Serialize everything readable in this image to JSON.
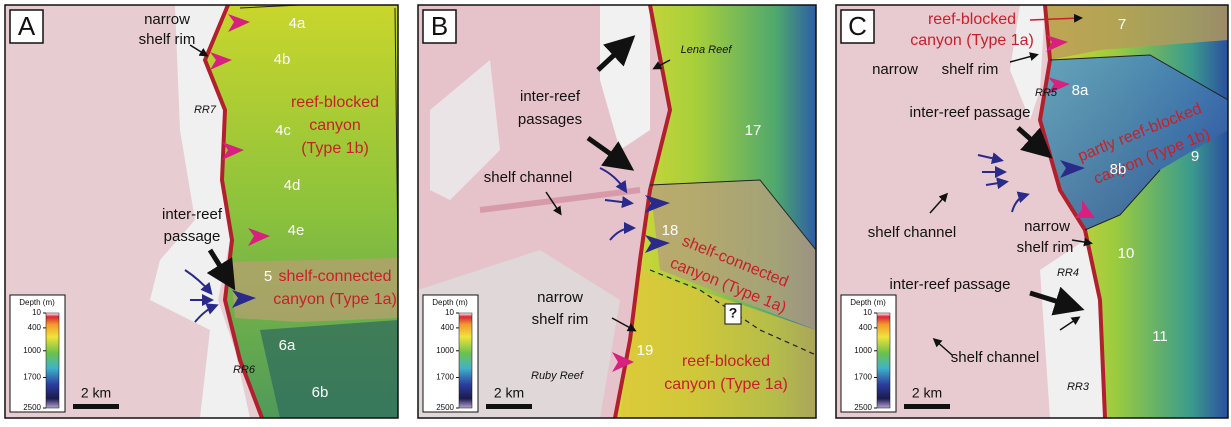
{
  "panels": [
    {
      "letter": "A",
      "labels": [
        "narrow",
        "shelf rim",
        "4a",
        "4b",
        "RR7",
        "4c",
        "reef-blocked",
        "canyon",
        "(Type 1b)",
        "4d",
        "4e",
        "inter-reef",
        "passage",
        "5",
        "shelf-connected",
        "canyon (Type 1a)",
        "6a",
        "RR6",
        "6b"
      ],
      "scale_bar": "2 km",
      "legend": {
        "title": "Depth (m)",
        "ticks": [
          10,
          400,
          1000,
          1700,
          2500
        ]
      }
    },
    {
      "letter": "B",
      "labels": [
        "Lena Reef",
        "inter-reef",
        "passages",
        "17",
        "shelf channel",
        "18",
        "shelf-connected",
        "canyon (Type 1a)",
        "?",
        "narrow",
        "shelf rim",
        "19",
        "Ruby Reef",
        "reef-blocked",
        "canyon (Type 1a)"
      ],
      "scale_bar": "2 km",
      "legend": {
        "title": "Depth (m)",
        "ticks": [
          10,
          400,
          1000,
          1700,
          2500
        ]
      }
    },
    {
      "letter": "C",
      "labels": [
        "reef-blocked",
        "canyon (Type 1a)",
        "7",
        "narrow",
        "shelf rim",
        "RR5",
        "8a",
        "partly reef-blocked",
        "canyon (Type 1b)",
        "inter-reef passage",
        "9",
        "8b",
        "shelf channel",
        "narrow",
        "shelf rim",
        "10",
        "RR4",
        "inter-reef passage",
        "11",
        "shelf channel",
        "RR3"
      ],
      "scale_bar": "2 km",
      "legend": {
        "title": "Depth (m)",
        "ticks": [
          10,
          400,
          1000,
          1700,
          2500
        ]
      }
    }
  ]
}
